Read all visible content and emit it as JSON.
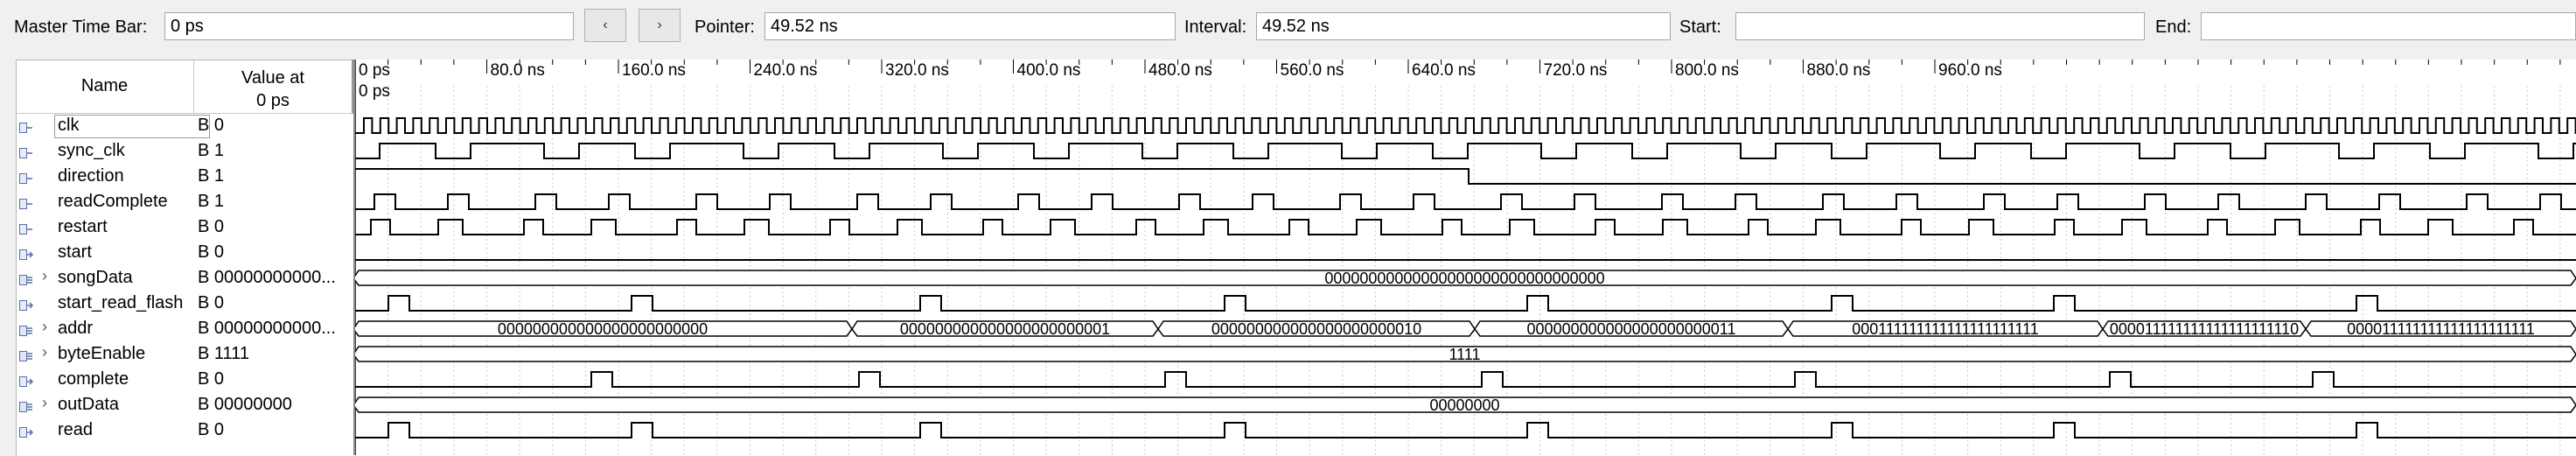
{
  "toolbar": {
    "master_time_bar_label": "Master Time Bar:",
    "master_time_bar_value": "0 ps",
    "prev_icon": "‹",
    "next_icon": "›",
    "pointer_label": "Pointer:",
    "pointer_value": "49.52 ns",
    "interval_label": "Interval:",
    "interval_value": "49.52 ns",
    "start_label": "Start:",
    "start_value": "",
    "end_label": "End:",
    "end_value": ""
  },
  "header": {
    "name": "Name",
    "value_line1": "Value at",
    "value_line2": "0 ps"
  },
  "time_axis": {
    "ticks": [
      "0 ps",
      "80.0 ns",
      "160.0 ns",
      "240.0 ns",
      "320.0 ns",
      "400.0 ns",
      "480.0 ns",
      "560.0 ns",
      "640.0 ns",
      "720.0 ns",
      "800.0 ns",
      "880.0 ns",
      "960.0 ns"
    ],
    "cursor_label": "0 ps"
  },
  "signals": [
    {
      "name": "clk",
      "value": "B 0",
      "icon": "input-pin-icon",
      "bus": false,
      "selected": true
    },
    {
      "name": "sync_clk",
      "value": "B 1",
      "icon": "input-pin-icon",
      "bus": false
    },
    {
      "name": "direction",
      "value": "B 1",
      "icon": "input-pin-icon",
      "bus": false
    },
    {
      "name": "readComplete",
      "value": "B 1",
      "icon": "input-pin-icon",
      "bus": false
    },
    {
      "name": "restart",
      "value": "B 0",
      "icon": "input-pin-icon",
      "bus": false
    },
    {
      "name": "start",
      "value": "B 0",
      "icon": "output-pin-icon",
      "bus": false
    },
    {
      "name": "songData",
      "value": "B 00000000000...",
      "icon": "input-bus-icon",
      "bus": true
    },
    {
      "name": "start_read_flash",
      "value": "B 0",
      "icon": "output-pin-icon",
      "bus": false
    },
    {
      "name": "addr",
      "value": "B 00000000000...",
      "icon": "output-bus-icon",
      "bus": true
    },
    {
      "name": "byteEnable",
      "value": "B 1111",
      "icon": "output-bus-icon",
      "bus": true
    },
    {
      "name": "complete",
      "value": "B 0",
      "icon": "output-pin-icon",
      "bus": false
    },
    {
      "name": "outData",
      "value": "B 00000000",
      "icon": "output-bus-icon",
      "bus": true
    },
    {
      "name": "read",
      "value": "B 0",
      "icon": "output-pin-icon",
      "bus": false
    }
  ],
  "bus_values": {
    "songData": "00000000000000000000000000000000",
    "addr": [
      {
        "from": 0,
        "to": 570,
        "text": "000000000000000000000000"
      },
      {
        "from": 570,
        "to": 920,
        "text": "000000000000000000000001"
      },
      {
        "from": 920,
        "to": 1282,
        "text": "000000000000000000000010"
      },
      {
        "from": 1282,
        "to": 1640,
        "text": "000000000000000000000011"
      },
      {
        "from": 1640,
        "to": 2000,
        "text": "000111111111111111111111"
      },
      {
        "from": 2000,
        "to": 2232,
        "text": "000011111111111111111110"
      },
      {
        "from": 2232,
        "to": 2541,
        "text": "000011111111111111111111"
      }
    ],
    "byteEnable": "1111",
    "outData": "00000000"
  },
  "colors": {
    "waveform": "#000000",
    "grid": "#c8c8c8",
    "cursor": "#1f3fbf"
  }
}
